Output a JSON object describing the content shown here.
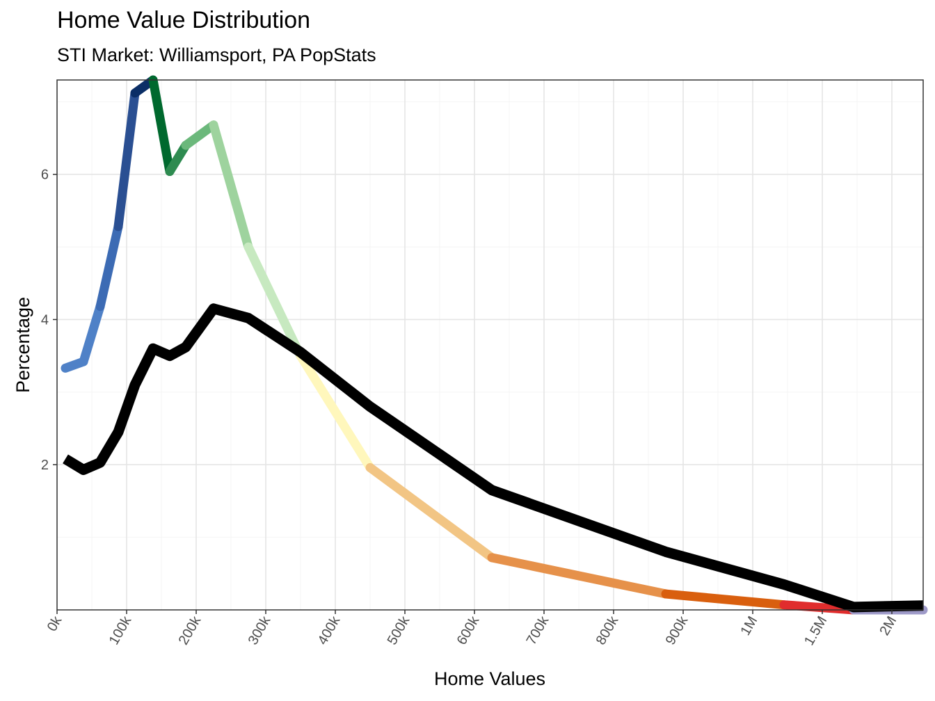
{
  "chart_data": {
    "type": "line",
    "title": "Home Value Distribution",
    "subtitle": "STI Market: Williamsport, PA PopStats",
    "xlabel": "Home Values",
    "ylabel": "Percentage",
    "x_tick_labels": [
      "0k",
      "100k",
      "200k",
      "300k",
      "400k",
      "500k",
      "600k",
      "700k",
      "800k",
      "900k",
      "1M",
      "1.5M",
      "2M"
    ],
    "y_ticks": [
      2,
      4,
      6
    ],
    "ylim": [
      0,
      7.3
    ],
    "grid": true,
    "legend": "none",
    "note": "x axis is categorical by bin midpoint; x values expressed as position on the printed tick scale",
    "series": [
      {
        "role": "market",
        "color_by_segment": true,
        "points": [
          {
            "x": 0.12,
            "y": 3.33,
            "color": "#4F81C7"
          },
          {
            "x": 0.38,
            "y": 3.42,
            "color": "#4F81C7"
          },
          {
            "x": 0.62,
            "y": 4.18,
            "color": "#3C6BB4"
          },
          {
            "x": 0.88,
            "y": 5.28,
            "color": "#2A4F92"
          },
          {
            "x": 1.12,
            "y": 7.12,
            "color": "#0B2E66"
          },
          {
            "x": 1.38,
            "y": 7.3,
            "color": "#00692E"
          },
          {
            "x": 1.62,
            "y": 6.04,
            "color": "#2E8B50"
          },
          {
            "x": 1.85,
            "y": 6.4,
            "color": "#6BB87B"
          },
          {
            "x": 2.25,
            "y": 6.68,
            "color": "#9ED39E"
          },
          {
            "x": 2.75,
            "y": 5.0,
            "color": "#C7E9C0"
          },
          {
            "x": 3.5,
            "y": 3.5,
            "color": "#FFF7BC"
          },
          {
            "x": 4.5,
            "y": 1.96,
            "color": "#F2C584"
          },
          {
            "x": 6.25,
            "y": 0.72,
            "color": "#E6914A"
          },
          {
            "x": 8.75,
            "y": 0.22,
            "color": "#D95F0E"
          },
          {
            "x": 10.45,
            "y": 0.07,
            "color": "#E02D2D"
          },
          {
            "x": 11.45,
            "y": 0.0,
            "color": "#9E9AC8"
          },
          {
            "x": 12.45,
            "y": 0.0,
            "color": "#7A68B0"
          }
        ]
      },
      {
        "role": "comparison",
        "color": "#000000",
        "points": [
          {
            "x": 0.12,
            "y": 2.08
          },
          {
            "x": 0.38,
            "y": 1.93
          },
          {
            "x": 0.62,
            "y": 2.03
          },
          {
            "x": 0.88,
            "y": 2.45
          },
          {
            "x": 1.12,
            "y": 3.1
          },
          {
            "x": 1.38,
            "y": 3.6
          },
          {
            "x": 1.62,
            "y": 3.5
          },
          {
            "x": 1.85,
            "y": 3.62
          },
          {
            "x": 2.25,
            "y": 4.15
          },
          {
            "x": 2.75,
            "y": 4.02
          },
          {
            "x": 3.5,
            "y": 3.55
          },
          {
            "x": 4.5,
            "y": 2.8
          },
          {
            "x": 6.25,
            "y": 1.65
          },
          {
            "x": 8.75,
            "y": 0.8
          },
          {
            "x": 10.45,
            "y": 0.35
          },
          {
            "x": 11.45,
            "y": 0.04
          },
          {
            "x": 12.45,
            "y": 0.06
          }
        ]
      }
    ]
  }
}
